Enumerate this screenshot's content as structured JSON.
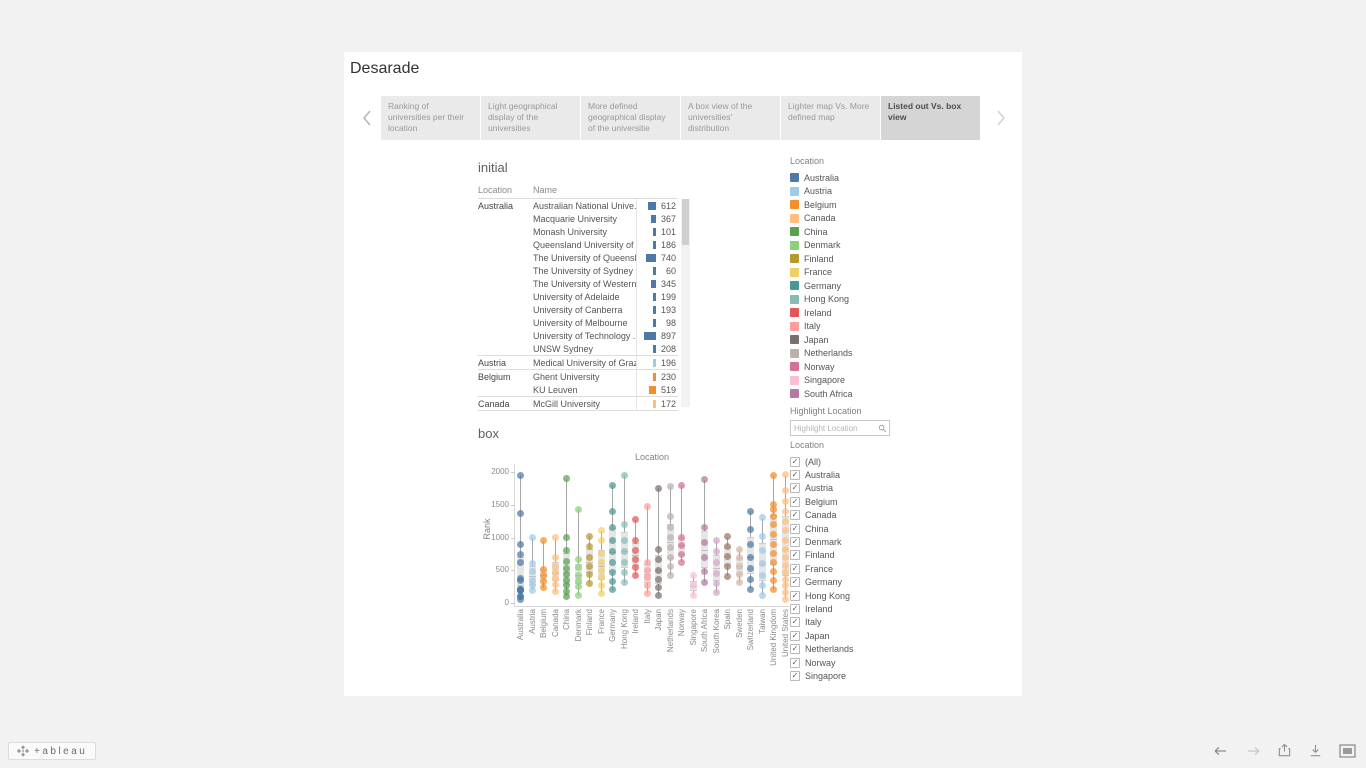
{
  "dashboard": {
    "title": "Desarade"
  },
  "tabs": {
    "selected_index": 5,
    "items": [
      "Ranking of universities per their location",
      "Light geographical display of the universities",
      "More defined geographical display of the universitie",
      "A box view of the universities' distribution",
      "Lighter map Vs. More defined map",
      "Listed out Vs. box view"
    ]
  },
  "initial": {
    "title": "initial",
    "columns": [
      "Location",
      "Name"
    ],
    "rows": [
      {
        "location": "Australia",
        "name": "Australian National Unive..",
        "value": 612,
        "color": "#4e79a7"
      },
      {
        "location": "",
        "name": "Macquarie University",
        "value": 367,
        "color": "#4e79a7"
      },
      {
        "location": "",
        "name": "Monash University",
        "value": 101,
        "color": "#4e79a7"
      },
      {
        "location": "",
        "name": "Queensland University of ..",
        "value": 186,
        "color": "#4e79a7"
      },
      {
        "location": "",
        "name": "The University of Queensl..",
        "value": 740,
        "color": "#4e79a7"
      },
      {
        "location": "",
        "name": "The University of Sydney",
        "value": 60,
        "color": "#4e79a7"
      },
      {
        "location": "",
        "name": "The University of Western..",
        "value": 345,
        "color": "#4e79a7"
      },
      {
        "location": "",
        "name": "University of Adelaide",
        "value": 199,
        "color": "#4e79a7"
      },
      {
        "location": "",
        "name": "University of Canberra",
        "value": 193,
        "color": "#4e79a7"
      },
      {
        "location": "",
        "name": "University of Melbourne",
        "value": 98,
        "color": "#4e79a7"
      },
      {
        "location": "",
        "name": "University of Technology ..",
        "value": 897,
        "color": "#4e79a7"
      },
      {
        "location": "",
        "name": "UNSW Sydney",
        "value": 208,
        "color": "#4e79a7"
      },
      {
        "location": "Austria",
        "name": "Medical University of Graz",
        "value": 196,
        "color": "#a0cbe8"
      },
      {
        "location": "Belgium",
        "name": "Ghent University",
        "value": 230,
        "color": "#f28e2b"
      },
      {
        "location": "",
        "name": "KU Leuven",
        "value": 519,
        "color": "#f28e2b"
      },
      {
        "location": "Canada",
        "name": "McGill University",
        "value": 172,
        "color": "#ffbe7d"
      }
    ]
  },
  "legend": {
    "title": "Location",
    "items": [
      {
        "label": "Australia",
        "color": "#4e79a7"
      },
      {
        "label": "Austria",
        "color": "#a0cbe8"
      },
      {
        "label": "Belgium",
        "color": "#f28e2b"
      },
      {
        "label": "Canada",
        "color": "#ffbe7d"
      },
      {
        "label": "China",
        "color": "#59a14f"
      },
      {
        "label": "Denmark",
        "color": "#8cd17d"
      },
      {
        "label": "Finland",
        "color": "#b6992d"
      },
      {
        "label": "France",
        "color": "#f1ce63"
      },
      {
        "label": "Germany",
        "color": "#499894"
      },
      {
        "label": "Hong Kong",
        "color": "#86bcb6"
      },
      {
        "label": "Ireland",
        "color": "#e15759"
      },
      {
        "label": "Italy",
        "color": "#ff9d9a"
      },
      {
        "label": "Japan",
        "color": "#79706e"
      },
      {
        "label": "Netherlands",
        "color": "#bab0ac"
      },
      {
        "label": "Norway",
        "color": "#d37295"
      },
      {
        "label": "Singapore",
        "color": "#fabfd2"
      },
      {
        "label": "South Africa",
        "color": "#b07aa1"
      }
    ]
  },
  "highlight": {
    "title": "Highlight Location",
    "placeholder": "Highlight Location"
  },
  "filter": {
    "title": "Location",
    "all_checked": true,
    "check_glyph": "✓",
    "items": [
      "(All)",
      "Australia",
      "Austria",
      "Belgium",
      "Canada",
      "China",
      "Denmark",
      "Finland",
      "France",
      "Germany",
      "Hong Kong",
      "Ireland",
      "Italy",
      "Japan",
      "Netherlands",
      "Norway",
      "Singapore"
    ]
  },
  "box": {
    "title": "box"
  },
  "chart_data": {
    "type": "box",
    "title": "Location",
    "ylabel": "Rank",
    "ylim": [
      0,
      2000
    ],
    "yticks": [
      0,
      500,
      1000,
      1500,
      2000
    ],
    "categories": [
      "Australia",
      "Austria",
      "Belgium",
      "Canada",
      "China",
      "Denmark",
      "Finland",
      "France",
      "Germany",
      "Hong Kong",
      "Ireland",
      "Italy",
      "Japan",
      "Netherlands",
      "Norway",
      "Singapore",
      "South Africa",
      "South Korea",
      "Spain",
      "Sweden",
      "Switzerland",
      "Taiwan",
      "United Kingdom",
      "United States"
    ],
    "series": [
      {
        "name": "Australia",
        "color": "#4e79a7",
        "points": [
          60,
          98,
          101,
          186,
          193,
          199,
          208,
          345,
          367,
          612,
          740,
          897,
          1370,
          1950
        ]
      },
      {
        "name": "Austria",
        "color": "#a0cbe8",
        "points": [
          196,
          260,
          340,
          480,
          600,
          1000
        ]
      },
      {
        "name": "Belgium",
        "color": "#f28e2b",
        "points": [
          230,
          330,
          420,
          519,
          950
        ]
      },
      {
        "name": "Canada",
        "color": "#ffbe7d",
        "points": [
          172,
          280,
          380,
          460,
          560,
          700,
          1000
        ]
      },
      {
        "name": "China",
        "color": "#59a14f",
        "points": [
          100,
          180,
          260,
          340,
          430,
          520,
          640,
          800,
          1000,
          1900
        ]
      },
      {
        "name": "Denmark",
        "color": "#8cd17d",
        "points": [
          120,
          250,
          330,
          420,
          540,
          660,
          1430
        ]
      },
      {
        "name": "Finland",
        "color": "#b6992d",
        "points": [
          300,
          430,
          560,
          700,
          860,
          1020
        ]
      },
      {
        "name": "France",
        "color": "#f1ce63",
        "points": [
          150,
          260,
          390,
          500,
          620,
          760,
          950,
          1100
        ]
      },
      {
        "name": "Germany",
        "color": "#499894",
        "points": [
          200,
          330,
          470,
          620,
          780,
          950,
          1150,
          1400,
          1800
        ]
      },
      {
        "name": "Hong Kong",
        "color": "#86bcb6",
        "points": [
          310,
          460,
          620,
          790,
          960,
          1200,
          1950
        ]
      },
      {
        "name": "Ireland",
        "color": "#e15759",
        "points": [
          420,
          540,
          660,
          800,
          950,
          1270
        ]
      },
      {
        "name": "Italy",
        "color": "#ff9d9a",
        "points": [
          150,
          270,
          390,
          500,
          620,
          1480
        ]
      },
      {
        "name": "Japan",
        "color": "#79706e",
        "points": [
          110,
          230,
          360,
          500,
          660,
          820,
          1750
        ]
      },
      {
        "name": "Netherlands",
        "color": "#bab0ac",
        "points": [
          420,
          560,
          700,
          850,
          1000,
          1160,
          1320,
          1780
        ]
      },
      {
        "name": "Norway",
        "color": "#d37295",
        "points": [
          620,
          740,
          880,
          1000,
          1800
        ]
      },
      {
        "name": "Singapore",
        "color": "#fabfd2",
        "points": [
          120,
          260,
          420
        ]
      },
      {
        "name": "South Africa",
        "color": "#b07aa1",
        "points": [
          320,
          480,
          700,
          920,
          1150,
          1880
        ]
      },
      {
        "name": "South Korea",
        "color": "#d4a6c8",
        "points": [
          160,
          300,
          450,
          620,
          780,
          960
        ]
      },
      {
        "name": "Spain",
        "color": "#9d7660",
        "points": [
          410,
          560,
          710,
          860,
          1010
        ]
      },
      {
        "name": "Sweden",
        "color": "#d7b5a6",
        "points": [
          310,
          430,
          560,
          690,
          820
        ]
      },
      {
        "name": "Switzerland",
        "color": "#4e79a7",
        "points": [
          210,
          360,
          520,
          700,
          900,
          1120,
          1400
        ]
      },
      {
        "name": "Taiwan",
        "color": "#a0cbe8",
        "points": [
          120,
          260,
          420,
          600,
          800,
          1020,
          1300
        ]
      },
      {
        "name": "United Kingdom",
        "color": "#f28e2b",
        "points": [
          200,
          340,
          480,
          620,
          760,
          900,
          1050,
          1200,
          1320,
          1420,
          1500,
          1950
        ]
      },
      {
        "name": "United States",
        "color": "#ffbe7d",
        "points": [
          60,
          160,
          260,
          360,
          470,
          580,
          700,
          820,
          950,
          1100,
          1250,
          1400,
          1550,
          1720,
          1960
        ]
      }
    ]
  },
  "toolbar": {
    "logo_text": "+ableau"
  }
}
